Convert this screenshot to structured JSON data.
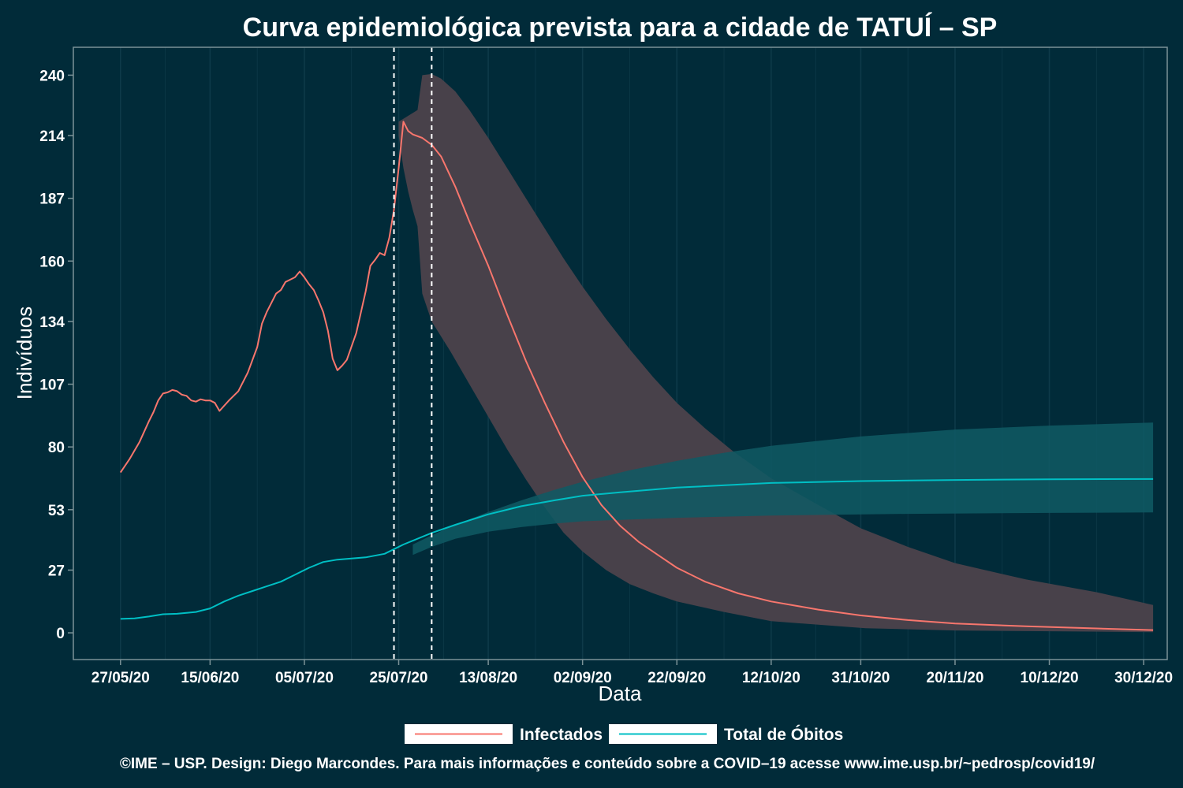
{
  "chart_data": {
    "type": "line",
    "title": "Curva epidemiológica prevista para a cidade de TATUÍ – SP",
    "xlabel": "Data",
    "ylabel": "Indivíduos",
    "x_range": [
      "2020-05-17",
      "2021-01-04"
    ],
    "ylim": [
      -11.5,
      252
    ],
    "x_ticks": [
      {
        "date": "2020-05-27",
        "label": "27/05/20"
      },
      {
        "date": "2020-06-15",
        "label": "15/06/20"
      },
      {
        "date": "2020-07-05",
        "label": "05/07/20"
      },
      {
        "date": "2020-07-25",
        "label": "25/07/20"
      },
      {
        "date": "2020-08-13",
        "label": "13/08/20"
      },
      {
        "date": "2020-09-02",
        "label": "02/09/20"
      },
      {
        "date": "2020-09-22",
        "label": "22/09/20"
      },
      {
        "date": "2020-10-12",
        "label": "12/10/20"
      },
      {
        "date": "2020-10-31",
        "label": "31/10/20"
      },
      {
        "date": "2020-11-20",
        "label": "20/11/20"
      },
      {
        "date": "2020-12-10",
        "label": "10/12/20"
      },
      {
        "date": "2020-12-30",
        "label": "30/12/20"
      }
    ],
    "y_ticks": [
      0,
      27,
      53,
      80,
      107,
      134,
      160,
      187,
      214,
      240
    ],
    "vlines": [
      "2020-07-24",
      "2020-08-01"
    ],
    "grid": true,
    "legend": "bottom",
    "series": [
      {
        "name": "Infectados",
        "color": "#f8766d",
        "values": [
          [
            "2020-05-27",
            69
          ],
          [
            "2020-05-29",
            75
          ],
          [
            "2020-05-31",
            82
          ],
          [
            "2020-06-02",
            91
          ],
          [
            "2020-06-03",
            95
          ],
          [
            "2020-06-04",
            100
          ],
          [
            "2020-06-05",
            103
          ],
          [
            "2020-06-06",
            103.5
          ],
          [
            "2020-06-07",
            104.5
          ],
          [
            "2020-06-08",
            104
          ],
          [
            "2020-06-09",
            102.5
          ],
          [
            "2020-06-10",
            102
          ],
          [
            "2020-06-11",
            100
          ],
          [
            "2020-06-12",
            99.5
          ],
          [
            "2020-06-13",
            100.5
          ],
          [
            "2020-06-14",
            100
          ],
          [
            "2020-06-15",
            100
          ],
          [
            "2020-06-16",
            99
          ],
          [
            "2020-06-17",
            95.5
          ],
          [
            "2020-06-19",
            100
          ],
          [
            "2020-06-21",
            104
          ],
          [
            "2020-06-23",
            112
          ],
          [
            "2020-06-25",
            123
          ],
          [
            "2020-06-26",
            133
          ],
          [
            "2020-06-27",
            138
          ],
          [
            "2020-06-29",
            146
          ],
          [
            "2020-06-30",
            147.5
          ],
          [
            "2020-07-01",
            151
          ],
          [
            "2020-07-02",
            152
          ],
          [
            "2020-07-03",
            153
          ],
          [
            "2020-07-04",
            155.5
          ],
          [
            "2020-07-05",
            153
          ],
          [
            "2020-07-06",
            150
          ],
          [
            "2020-07-07",
            147.5
          ],
          [
            "2020-07-08",
            143
          ],
          [
            "2020-07-09",
            138
          ],
          [
            "2020-07-10",
            130
          ],
          [
            "2020-07-11",
            118
          ],
          [
            "2020-07-12",
            113
          ],
          [
            "2020-07-13",
            115
          ],
          [
            "2020-07-14",
            117.5
          ],
          [
            "2020-07-16",
            129
          ],
          [
            "2020-07-17",
            138
          ],
          [
            "2020-07-18",
            147
          ],
          [
            "2020-07-19",
            158
          ],
          [
            "2020-07-20",
            160.5
          ],
          [
            "2020-07-21",
            163.5
          ],
          [
            "2020-07-22",
            162.5
          ],
          [
            "2020-07-23",
            170
          ],
          [
            "2020-07-24",
            182
          ],
          [
            "2020-07-25",
            200
          ],
          [
            "2020-07-26",
            220
          ],
          [
            "2020-07-27",
            216
          ],
          [
            "2020-07-28",
            214.5
          ],
          [
            "2020-07-30",
            213
          ],
          [
            "2020-08-01",
            210
          ],
          [
            "2020-08-03",
            205
          ],
          [
            "2020-08-06",
            192
          ],
          [
            "2020-08-09",
            177
          ],
          [
            "2020-08-13",
            158
          ],
          [
            "2020-08-17",
            137
          ],
          [
            "2020-08-21",
            117
          ],
          [
            "2020-08-25",
            99
          ],
          [
            "2020-08-29",
            82
          ],
          [
            "2020-09-02",
            67
          ],
          [
            "2020-09-06",
            55
          ],
          [
            "2020-09-10",
            46
          ],
          [
            "2020-09-14",
            39
          ],
          [
            "2020-09-18",
            33.5
          ],
          [
            "2020-09-22",
            28
          ],
          [
            "2020-09-28",
            22
          ],
          [
            "2020-10-05",
            17
          ],
          [
            "2020-10-12",
            13.5
          ],
          [
            "2020-10-22",
            10
          ],
          [
            "2020-10-31",
            7.5
          ],
          [
            "2020-11-10",
            5.5
          ],
          [
            "2020-11-20",
            4
          ],
          [
            "2020-12-05",
            2.8
          ],
          [
            "2020-12-20",
            1.9
          ],
          [
            "2021-01-01",
            1.2
          ]
        ],
        "band": {
          "upper": [
            [
              "2020-07-25",
              220
            ],
            [
              "2020-07-29",
              225
            ],
            [
              "2020-07-30",
              240
            ],
            [
              "2020-08-01",
              240.5
            ],
            [
              "2020-08-03",
              238.5
            ],
            [
              "2020-08-06",
              233
            ],
            [
              "2020-08-09",
              225
            ],
            [
              "2020-08-13",
              213
            ],
            [
              "2020-08-17",
              200
            ],
            [
              "2020-08-21",
              187
            ],
            [
              "2020-08-25",
              174
            ],
            [
              "2020-08-29",
              161
            ],
            [
              "2020-09-02",
              149
            ],
            [
              "2020-09-07",
              135
            ],
            [
              "2020-09-12",
              122
            ],
            [
              "2020-09-17",
              110
            ],
            [
              "2020-09-22",
              99
            ],
            [
              "2020-09-28",
              88
            ],
            [
              "2020-10-04",
              78
            ],
            [
              "2020-10-12",
              66.5
            ],
            [
              "2020-10-22",
              55
            ],
            [
              "2020-10-31",
              45
            ],
            [
              "2020-11-10",
              37
            ],
            [
              "2020-11-20",
              30
            ],
            [
              "2020-12-05",
              23
            ],
            [
              "2020-12-20",
              17.5
            ],
            [
              "2021-01-01",
              12
            ]
          ],
          "lower": [
            [
              "2020-07-25",
              214
            ],
            [
              "2020-07-26",
              200
            ],
            [
              "2020-07-27",
              190
            ],
            [
              "2020-07-28",
              182
            ],
            [
              "2020-07-29",
              175
            ],
            [
              "2020-07-30",
              146
            ],
            [
              "2020-08-01",
              134
            ],
            [
              "2020-08-05",
              121
            ],
            [
              "2020-08-09",
              107
            ],
            [
              "2020-08-13",
              93
            ],
            [
              "2020-08-17",
              79
            ],
            [
              "2020-08-21",
              66
            ],
            [
              "2020-08-25",
              54
            ],
            [
              "2020-08-29",
              43
            ],
            [
              "2020-09-02",
              35
            ],
            [
              "2020-09-07",
              27
            ],
            [
              "2020-09-12",
              21
            ],
            [
              "2020-09-17",
              17
            ],
            [
              "2020-09-22",
              13.5
            ],
            [
              "2020-10-02",
              9
            ],
            [
              "2020-10-12",
              5
            ],
            [
              "2020-10-22",
              3.5
            ],
            [
              "2020-11-01",
              2
            ],
            [
              "2020-11-20",
              1
            ],
            [
              "2021-01-01",
              0.3
            ]
          ]
        }
      },
      {
        "name": "Total de Óbitos",
        "color": "#00bfc4",
        "values": [
          [
            "2020-05-27",
            6
          ],
          [
            "2020-05-30",
            6.2
          ],
          [
            "2020-06-02",
            7
          ],
          [
            "2020-06-05",
            8
          ],
          [
            "2020-06-08",
            8.2
          ],
          [
            "2020-06-12",
            9
          ],
          [
            "2020-06-15",
            10.5
          ],
          [
            "2020-06-18",
            13.5
          ],
          [
            "2020-06-21",
            16
          ],
          [
            "2020-06-24",
            18
          ],
          [
            "2020-06-27",
            20
          ],
          [
            "2020-06-30",
            22
          ],
          [
            "2020-07-03",
            25
          ],
          [
            "2020-07-06",
            28
          ],
          [
            "2020-07-09",
            30.5
          ],
          [
            "2020-07-12",
            31.5
          ],
          [
            "2020-07-15",
            32
          ],
          [
            "2020-07-18",
            32.5
          ],
          [
            "2020-07-22",
            34
          ],
          [
            "2020-07-26",
            38
          ],
          [
            "2020-08-01",
            43
          ],
          [
            "2020-08-06",
            46.5
          ],
          [
            "2020-08-13",
            51
          ],
          [
            "2020-08-20",
            54.5
          ],
          [
            "2020-08-27",
            57
          ],
          [
            "2020-09-02",
            59
          ],
          [
            "2020-09-10",
            60.5
          ],
          [
            "2020-09-22",
            62.5
          ],
          [
            "2020-10-12",
            64.5
          ],
          [
            "2020-10-31",
            65.3
          ],
          [
            "2020-11-20",
            65.8
          ],
          [
            "2020-12-10",
            66.1
          ],
          [
            "2021-01-01",
            66.2
          ]
        ],
        "band": {
          "upper": [
            [
              "2020-07-28",
              38
            ],
            [
              "2020-08-01",
              42
            ],
            [
              "2020-08-06",
              46.5
            ],
            [
              "2020-08-13",
              52
            ],
            [
              "2020-08-20",
              57
            ],
            [
              "2020-08-27",
              61.5
            ],
            [
              "2020-09-02",
              65
            ],
            [
              "2020-09-12",
              70
            ],
            [
              "2020-09-22",
              74
            ],
            [
              "2020-10-02",
              77.5
            ],
            [
              "2020-10-12",
              80.5
            ],
            [
              "2020-10-31",
              84.5
            ],
            [
              "2020-11-20",
              87.5
            ],
            [
              "2020-12-10",
              89.2
            ],
            [
              "2021-01-01",
              90.5
            ]
          ],
          "lower": [
            [
              "2020-07-28",
              33.5
            ],
            [
              "2020-08-01",
              37
            ],
            [
              "2020-08-06",
              40.5
            ],
            [
              "2020-08-13",
              43.5
            ],
            [
              "2020-08-20",
              45.5
            ],
            [
              "2020-08-27",
              47
            ],
            [
              "2020-09-02",
              48
            ],
            [
              "2020-09-22",
              49.5
            ],
            [
              "2020-10-12",
              50.5
            ],
            [
              "2020-11-10",
              51.2
            ],
            [
              "2020-12-10",
              51.6
            ],
            [
              "2021-01-01",
              51.8
            ]
          ]
        }
      }
    ]
  },
  "colors": {
    "background": "#012b39",
    "grid": "#0e3a49",
    "frame": "#7b9297",
    "band_infectados": "#48414a",
    "band_obitos": "#0f5a64",
    "band_overlap": "#2d5e63"
  },
  "caption": "©IME – USP. Design: Diego Marcondes. Para mais informações e conteúdo sobre a COVID–19 acesse www.ime.usp.br/~pedrosp/covid19/"
}
